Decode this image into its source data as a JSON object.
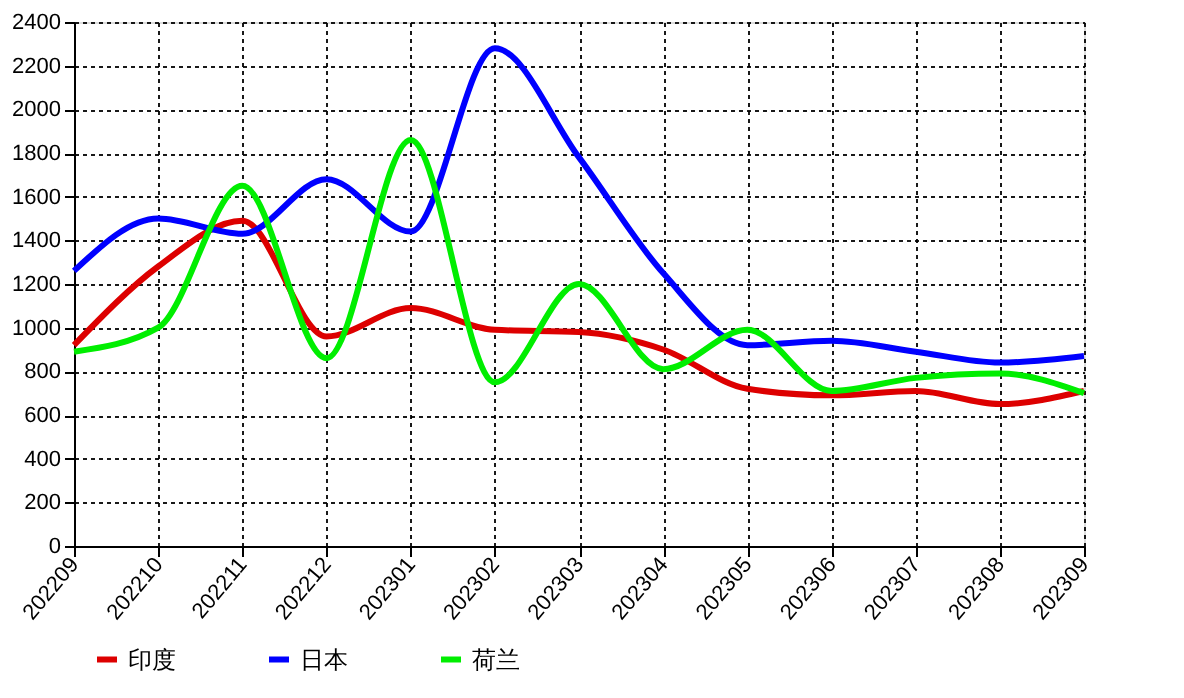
{
  "chart_data": {
    "type": "line",
    "categories": [
      "202209",
      "202210",
      "202211",
      "202212",
      "202301",
      "202302",
      "202303",
      "202304",
      "202305",
      "202306",
      "202307",
      "202308",
      "202309"
    ],
    "series": [
      {
        "name": "印度",
        "color": "#dd0000",
        "values": [
          920,
          1280,
          1490,
          960,
          1090,
          990,
          980,
          900,
          720,
          690,
          710,
          650,
          710
        ]
      },
      {
        "name": "日本",
        "color": "#0000ff",
        "values": [
          1260,
          1500,
          1430,
          1680,
          1440,
          2280,
          1780,
          1250,
          920,
          940,
          890,
          840,
          870
        ]
      },
      {
        "name": "荷兰",
        "color": "#00ee00",
        "values": [
          890,
          1000,
          1650,
          860,
          1860,
          750,
          1200,
          810,
          990,
          710,
          770,
          790,
          700
        ]
      }
    ],
    "ylim": [
      0,
      2400
    ],
    "yticks": [
      0,
      200,
      400,
      600,
      800,
      1000,
      1200,
      1400,
      1600,
      1800,
      2000,
      2200,
      2400
    ],
    "grid": true,
    "legend": "bottom left",
    "line_style": "solid",
    "marker": "none"
  }
}
